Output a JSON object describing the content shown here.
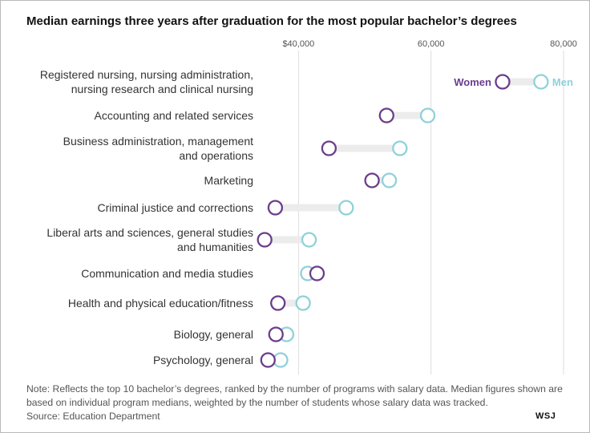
{
  "title": "Median earnings three years after graduation for the most popular bachelor’s degrees",
  "note_lines": [
    "Note: Reflects the top 10 bachelor’s degrees, ranked by the number of programs with salary data. Median figures shown are",
    "based on individual program medians, weighted by the number of students whose salary data was tracked.",
    "Source: Education Department"
  ],
  "logo": "WSJ",
  "colors": {
    "women": "#6b3d8c",
    "men": "#8fd1d9",
    "connector": "#ececec",
    "grid": "#dddddd"
  },
  "chart_data": {
    "type": "dumbbell",
    "title": "Median earnings three years after graduation for the most popular bachelor’s degrees",
    "xlim": [
      35000,
      80000
    ],
    "x_ticks": [
      {
        "value": 40000,
        "label": "$40,000"
      },
      {
        "value": 60000,
        "label": "60,000"
      },
      {
        "value": 80000,
        "label": "80,000"
      }
    ],
    "legend": [
      {
        "name": "Women",
        "color": "#6b3d8c"
      },
      {
        "name": "Men",
        "color": "#8fd1d9"
      }
    ],
    "legend_placement": "inline-first-row",
    "grid": true,
    "categories": [
      {
        "label": [
          "Registered nursing, nursing administration,",
          "nursing research and clinical nursing"
        ],
        "women": 70800,
        "men": 76600
      },
      {
        "label": [
          "Accounting and related services"
        ],
        "women": 53300,
        "men": 59500
      },
      {
        "label": [
          "Business administration, management",
          "and operations"
        ],
        "women": 44600,
        "men": 55300
      },
      {
        "label": [
          "Marketing"
        ],
        "women": 51100,
        "men": 53700
      },
      {
        "label": [
          "Criminal justice and corrections"
        ],
        "women": 36500,
        "men": 47200
      },
      {
        "label": [
          "Liberal arts and sciences, general studies",
          "and humanities"
        ],
        "women": 34900,
        "men": 41600
      },
      {
        "label": [
          "Communication and media studies"
        ],
        "women": 42800,
        "men": 41400
      },
      {
        "label": [
          "Health and physical education/fitness"
        ],
        "women": 36900,
        "men": 40700
      },
      {
        "label": [
          "Biology, general"
        ],
        "women": 36600,
        "men": 38200
      },
      {
        "label": [
          "Psychology, general"
        ],
        "women": 35400,
        "men": 37300
      }
    ]
  }
}
